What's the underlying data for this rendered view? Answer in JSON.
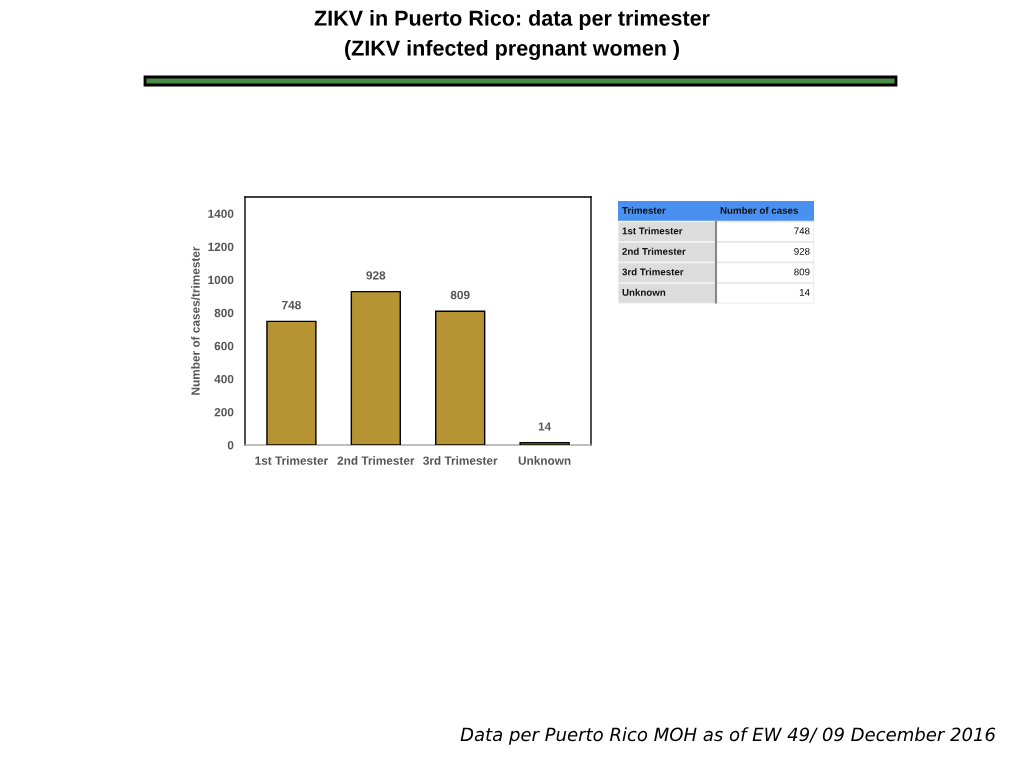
{
  "chart_data": [
    {
      "type": "bar",
      "title": "ZIKV in Puerto Rico: data per trimester",
      "subtitle": "(ZIKV infected pregnant women )",
      "ylabel": "Number of cases/trimester",
      "categories": [
        "1st Trimester",
        "2nd Trimester",
        "3rd Trimester",
        "Unknown"
      ],
      "values": [
        748,
        928,
        809,
        14
      ],
      "color": "#b69333",
      "ylim": [
        0,
        1500
      ],
      "yticks": [
        0,
        200,
        400,
        600,
        800,
        1000,
        1200,
        1400
      ],
      "grid": false,
      "data_labels": true,
      "annotations": [
        "Data per Puerto Rico MOH as of EW 49/ 09 December 2016"
      ]
    },
    {
      "type": "other",
      "annotations": [
        "Trimester",
        "Number of cases"
      ],
      "categories": [
        "1st Trimester",
        "2nd Trimester",
        "3rd Trimester",
        "Unknown"
      ],
      "values": [
        748,
        928,
        809,
        14
      ],
      "data_labels": true
    }
  ]
}
